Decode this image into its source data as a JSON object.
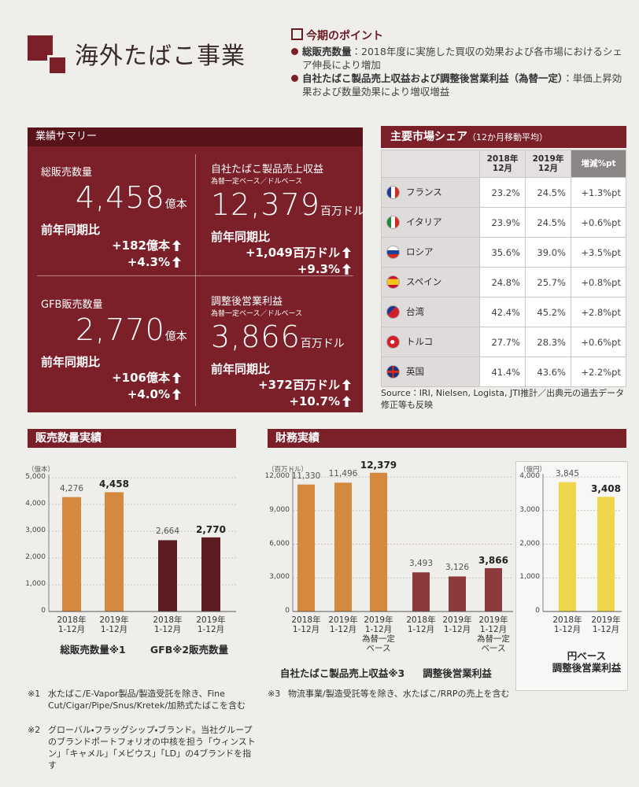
{
  "header": {
    "title": "海外たばこ事業"
  },
  "points": {
    "heading": "今期のポイント",
    "items": [
      {
        "label": "総販売数量",
        "text": "：2018年度に実施した買収の効果および各市場におけるシェア伸長により増加"
      },
      {
        "label": "自社たばこ製品売上収益および調整後営業利益（為替一定）",
        "text": "：単価上昇効果および数量効果により増収増益"
      }
    ]
  },
  "summary": {
    "title": "業績サマリー",
    "cells": [
      {
        "label": "総販売数量",
        "value": "4,458",
        "unit": "億本",
        "compare": "前年同期比",
        "changes": [
          "+182億本",
          "+4.3%"
        ]
      },
      {
        "label": "自社たばこ製品売上収益",
        "note": "為替一定ベース／ドルベース",
        "value": "12,379",
        "unit": "百万ドル",
        "compare": "前年同期比",
        "changes": [
          "+1,049百万ドル",
          "+9.3%"
        ]
      },
      {
        "label": "GFB販売数量",
        "value": "2,770",
        "unit": "億本",
        "compare": "前年同期比",
        "changes": [
          "+106億本",
          "+4.0%"
        ]
      },
      {
        "label": "調整後営業利益",
        "note": "為替一定ベース／ドルベース",
        "value": "3,866",
        "unit": "百万ドル",
        "compare": "前年同期比",
        "changes": [
          "+372百万ドル",
          "+10.7%"
        ]
      }
    ]
  },
  "share": {
    "title": "主要市場シェア",
    "subtitle": "（12か月移動平均）",
    "header": [
      "2018年\n12月",
      "2019年\n12月",
      "増減%pt"
    ],
    "rows": [
      [
        "フランス",
        "23.2%",
        "24.5%",
        "+1.3%pt"
      ],
      [
        "イタリア",
        "23.9%",
        "24.5%",
        "+0.6%pt"
      ],
      [
        "ロシア",
        "35.6%",
        "39.0%",
        "+3.5%pt"
      ],
      [
        "スペイン",
        "24.8%",
        "25.7%",
        "+0.8%pt"
      ],
      [
        "台湾",
        "42.4%",
        "45.2%",
        "+2.8%pt"
      ],
      [
        "トルコ",
        "27.7%",
        "28.3%",
        "+0.6%pt"
      ],
      [
        "英国",
        "41.4%",
        "43.6%",
        "+2.2%pt"
      ]
    ],
    "source": "Source：IRI, Nielsen, Logista, JTI推計／出典元の過去データ修正等も反映"
  },
  "chart_data": [
    {
      "type": "bar",
      "title": "販売数量実績",
      "y_unit": "（億本）",
      "ylim": [
        0,
        5000
      ],
      "yticks": [
        0,
        {
          "value": 1000,
          "label": "1,000"
        },
        {
          "value": 2000,
          "label": "2,000"
        },
        {
          "value": 3000,
          "label": "3,000"
        },
        {
          "value": 4000,
          "label": "4,000"
        },
        {
          "value": 5000,
          "label": "5,000"
        }
      ],
      "grid": true,
      "groups": [
        {
          "label": "総販売数量※1",
          "color": "#d4893e",
          "categories": [
            "2018年\n1-12月",
            "2019年\n1-12月"
          ],
          "values": [
            4276,
            4458
          ],
          "value_labels": [
            "4,276",
            "4,458"
          ]
        },
        {
          "label": "GFB※2販売数量",
          "color": "#5b1d22",
          "categories": [
            "2018年\n1-12月",
            "2019年\n1-12月"
          ],
          "values": [
            2664,
            2770
          ],
          "value_labels": [
            "2,664",
            "2,770"
          ]
        }
      ]
    },
    {
      "type": "bar",
      "title": "財務実績",
      "y_unit": "（百万ドル）",
      "ylim": [
        0,
        12500
      ],
      "yticks": [
        0,
        {
          "value": 3000,
          "label": "3,000"
        },
        {
          "value": 6000,
          "label": "6,000"
        },
        {
          "value": 9000,
          "label": "9,000"
        },
        {
          "value": 12000,
          "label": "12,000"
        }
      ],
      "grid": true,
      "groups": [
        {
          "label": "自社たばこ製品売上収益※3",
          "color": "#d4893e",
          "categories": [
            "2018年\n1-12月",
            "2019年\n1-12月",
            "2019年\n1-12月\n為替一定\nベース"
          ],
          "values": [
            11330,
            11496,
            12379
          ],
          "value_labels": [
            "11,330",
            "11,496",
            "12,379"
          ]
        },
        {
          "label": "調整後営業利益",
          "color": "#8b3b3b",
          "categories": [
            "2018年\n1-12月",
            "2019年\n1-12月",
            "2019年\n1-12月\n為替一定\nベース"
          ],
          "values": [
            3493,
            3126,
            3866
          ],
          "value_labels": [
            "3,493",
            "3,126",
            "3,866"
          ]
        }
      ]
    },
    {
      "type": "bar",
      "y_unit": "（億円）",
      "ylim": [
        0,
        4000
      ],
      "yticks": [
        0,
        {
          "value": 1000,
          "label": "1,000"
        },
        {
          "value": 2000,
          "label": "2,000"
        },
        {
          "value": 3000,
          "label": "3,000"
        },
        {
          "value": 4000,
          "label": "4,000"
        }
      ],
      "grid": true,
      "groups": [
        {
          "label": "円ベース\n調整後営業利益",
          "color": "#efd54b",
          "categories": [
            "2018年\n1-12月",
            "2019年\n1-12月"
          ],
          "values": [
            3845,
            3408
          ],
          "value_labels": [
            "3,845",
            "3,408"
          ]
        }
      ]
    }
  ],
  "footnotes": [
    {
      "mark": "※1",
      "text": "水たばこ/E-Vapor製品/製造受託を除き、Fine Cut/Cigar/Pipe/Snus/Kretek/加熱式たばこを含む"
    },
    {
      "mark": "※2",
      "text": "グローバル・フラッグシップ・ブランド。当社グループのブランドポートフォリオの中核を担う「ウィンストン」「キャメル」「メビウス」「LD」の4ブランドを指す"
    },
    {
      "mark": "※3",
      "text": "物流事業/製造受託等を除き、水たばこ/RRPの売上を含む"
    }
  ]
}
